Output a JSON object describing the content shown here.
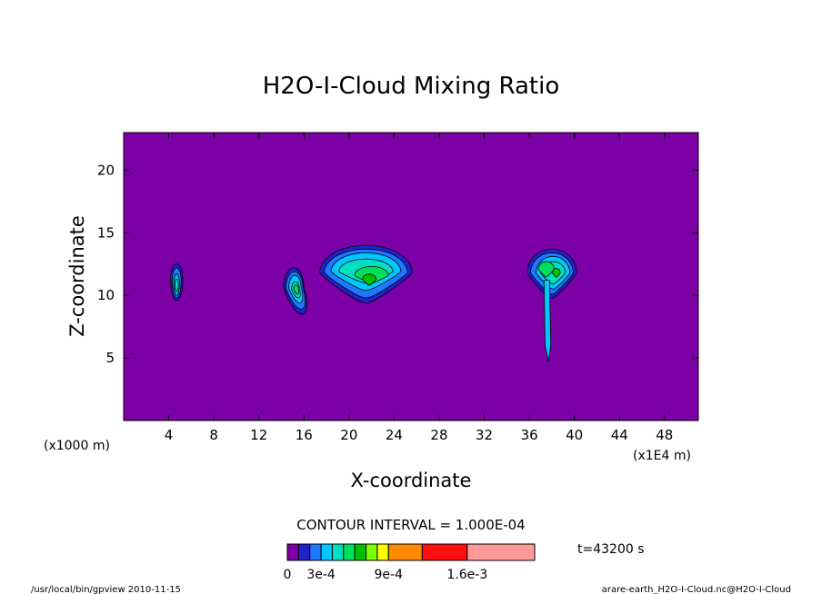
{
  "chart_data": {
    "type": "contour",
    "title": "H2O-I-Cloud Mixing Ratio",
    "xlabel": "X-coordinate",
    "ylabel": "Z-coordinate",
    "x_unit_left": "(x1000 m)",
    "x_unit_right": "(x1E4 m)",
    "x_ticks": [
      4,
      8,
      12,
      16,
      20,
      24,
      28,
      32,
      36,
      40,
      44,
      48
    ],
    "y_ticks": [
      5,
      10,
      15,
      20
    ],
    "xlim": [
      0,
      51
    ],
    "ylim": [
      0,
      23
    ],
    "contour_interval_label": "CONTOUR INTERVAL = 1.000E-04",
    "time_label": "t=43200 s",
    "colorbar": {
      "levels": [
        0,
        0.0001,
        0.0002,
        0.0003,
        0.0004,
        0.0005,
        0.0006,
        0.0007,
        0.0008,
        0.0009,
        0.0012,
        0.0016,
        0.0022
      ],
      "colors": [
        "#7b00a5",
        "#2222cc",
        "#1e78ff",
        "#00c8ff",
        "#00e0c0",
        "#00e060",
        "#00c000",
        "#7cff00",
        "#ffff00",
        "#ff8a00",
        "#ff1010",
        "#ff9a9a"
      ],
      "labels": [
        "0",
        "3e-4",
        "9e-4",
        "1.6e-3"
      ]
    },
    "cloud_cells": [
      {
        "center_x": 4.7,
        "center_z": 11.3,
        "peak_level": 4
      },
      {
        "center_x": 15.1,
        "center_z": 10.6,
        "peak_level": 5
      },
      {
        "center_x": 21.5,
        "center_z": 11.8,
        "peak_level": 6
      },
      {
        "center_x": 38.0,
        "center_z": 11.8,
        "peak_level": 6
      }
    ],
    "background_color": "#7b00a5"
  },
  "footer": {
    "left": "/usr/local/bin/gpview  2010-11-15",
    "right": "arare-earth_H2O-I-Cloud.nc@H2O-I-Cloud"
  }
}
